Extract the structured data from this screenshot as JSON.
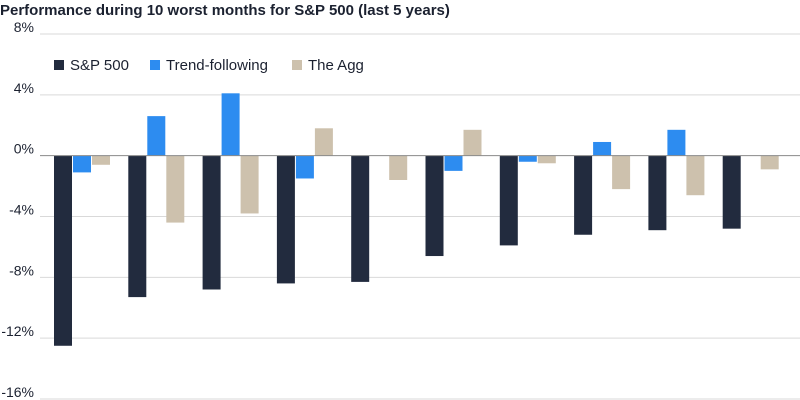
{
  "chart_data": {
    "type": "bar",
    "title": "Performance during 10 worst months for S&P 500 (last 5 years)",
    "xlabel": "",
    "ylabel": "",
    "ylim": [
      -16,
      8
    ],
    "yticks": [
      8,
      4,
      0,
      -4,
      -8,
      -12,
      -16
    ],
    "ytick_labels": [
      "8%",
      "4%",
      "0%",
      "-4%",
      "-8%",
      "-12%",
      "-16%"
    ],
    "grid": true,
    "legend_position": "top-left",
    "categories": [
      "",
      "",
      "",
      "",
      "",
      "",
      "",
      "",
      "",
      ""
    ],
    "series": [
      {
        "name": "S&P 500",
        "color": "#222b3e",
        "values": [
          -12.5,
          -9.3,
          -8.8,
          -8.4,
          -8.3,
          -6.6,
          -5.9,
          -5.2,
          -4.9,
          -4.8
        ]
      },
      {
        "name": "Trend-following",
        "color": "#2d8cf0",
        "values": [
          -1.1,
          2.6,
          4.1,
          -1.5,
          0.0,
          -1.0,
          -0.4,
          0.9,
          1.7,
          0.0
        ]
      },
      {
        "name": "The Agg",
        "color": "#cdc1ad",
        "values": [
          -0.6,
          -4.4,
          -3.8,
          1.8,
          -1.6,
          1.7,
          -0.5,
          -2.2,
          -2.6,
          -0.9
        ]
      }
    ]
  }
}
